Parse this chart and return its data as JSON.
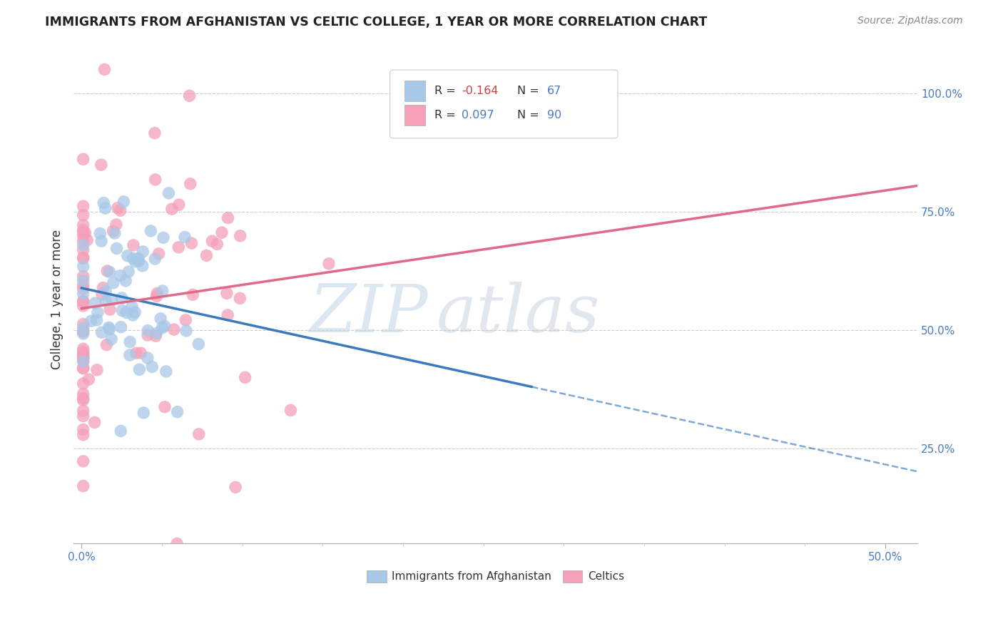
{
  "title": "IMMIGRANTS FROM AFGHANISTAN VS CELTIC COLLEGE, 1 YEAR OR MORE CORRELATION CHART",
  "source": "Source: ZipAtlas.com",
  "ylabel": "College, 1 year or more",
  "x_tick_labels_outer": [
    "0.0%",
    "50.0%"
  ],
  "x_tick_positions_outer": [
    0.0,
    0.5
  ],
  "y_tick_labels_right": [
    "25.0%",
    "50.0%",
    "75.0%",
    "100.0%"
  ],
  "y_tick_positions_right": [
    0.25,
    0.5,
    0.75,
    1.0
  ],
  "xlim": [
    -0.005,
    0.52
  ],
  "ylim": [
    0.05,
    1.08
  ],
  "blue_R": -0.164,
  "blue_N": 67,
  "pink_R": 0.097,
  "pink_N": 90,
  "legend_label_blue": "Immigrants from Afghanistan",
  "legend_label_pink": "Celtics",
  "blue_color": "#a8c8e8",
  "pink_color": "#f4a0b8",
  "blue_line_color": "#3a7abf",
  "pink_line_color": "#e06888",
  "watermark_zip": "ZIP",
  "watermark_atlas": "atlas",
  "bg_color": "#ffffff",
  "grid_color": "#cccccc"
}
